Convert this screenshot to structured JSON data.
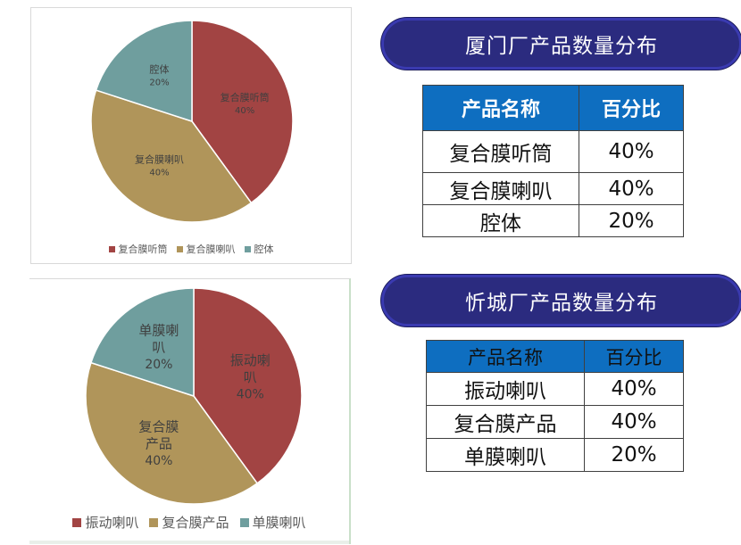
{
  "charts": [
    {
      "id": "chart1",
      "chart_data": {
        "type": "pie",
        "categories": [
          "复合膜听筒",
          "复合膜喇叭",
          "腔体"
        ],
        "values": [
          40,
          40,
          20
        ],
        "labels": [
          [
            "复合膜听筒"
          ],
          [
            "复合膜喇叭"
          ],
          [
            "腔体"
          ]
        ],
        "percent_labels": [
          "40%",
          "40%",
          "20%"
        ],
        "colors": [
          "#a24443",
          "#b0955a",
          "#6f9e9e"
        ],
        "legend": [
          "复合膜听筒",
          "复合膜喇叭",
          "腔体"
        ],
        "legend_position": "bottom"
      }
    },
    {
      "id": "chart2",
      "chart_data": {
        "type": "pie",
        "categories": [
          "振动喇叭",
          "复合膜产品",
          "单膜喇叭"
        ],
        "values": [
          40,
          40,
          20
        ],
        "labels": [
          [
            "振动喇",
            "叭"
          ],
          [
            "复合膜",
            "产品"
          ],
          [
            "单膜喇",
            "叭"
          ]
        ],
        "percent_labels": [
          "40%",
          "40%",
          "20%"
        ],
        "colors": [
          "#a24443",
          "#b0955a",
          "#6f9e9e"
        ],
        "legend": [
          "振动喇叭",
          "复合膜产品",
          "单膜喇叭"
        ],
        "legend_position": "bottom"
      }
    }
  ],
  "panels": [
    {
      "title": "厦门厂产品数量分布",
      "headers": [
        "产品名称",
        "百分比"
      ],
      "rows": [
        [
          "复合膜听筒",
          "40%"
        ],
        [
          "复合膜喇叭",
          "40%"
        ],
        [
          "腔体",
          "20%"
        ]
      ]
    },
    {
      "title": "忻城厂产品数量分布",
      "headers": [
        "产品名称",
        "百分比"
      ],
      "rows": [
        [
          "振动喇叭",
          "40%"
        ],
        [
          "复合膜产品",
          "40%"
        ],
        [
          "单膜喇叭",
          "20%"
        ]
      ]
    }
  ]
}
